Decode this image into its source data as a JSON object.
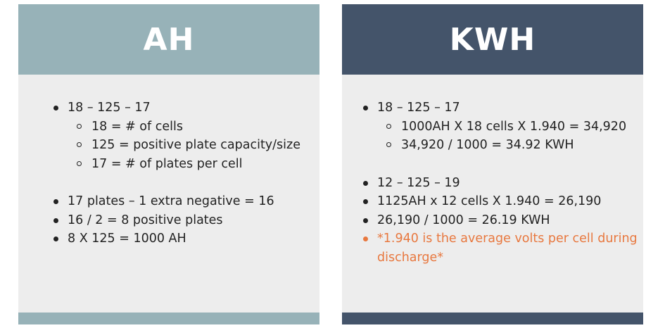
{
  "left": {
    "title": "AH",
    "group1": {
      "main": "18 – 125 – 17",
      "subs": [
        "18 = # of cells",
        "125 = positive plate capacity/size",
        "17 = # of plates per cell"
      ]
    },
    "group2": [
      "17 plates – 1 extra negative = 16",
      "16 / 2 = 8 positive plates",
      "8 X 125 = 1000 AH"
    ]
  },
  "right": {
    "title": "KWH",
    "group1": {
      "main": "18 – 125 – 17",
      "subs": [
        "1000AH X 18 cells X 1.940 = 34,920",
        "34,920 / 1000 = 34.92 KWH"
      ]
    },
    "group2": [
      "12 – 125 – 19",
      "1125AH x 12 cells X 1.940 = 26,190",
      "26,190 / 1000 = 26.19 KWH"
    ],
    "note": "*1.940 is the average volts per cell during discharge*"
  },
  "colors": {
    "left_header": "#97b2b8",
    "right_header": "#44546a",
    "panel_bg": "#ededed",
    "note_text": "#e8783f"
  }
}
